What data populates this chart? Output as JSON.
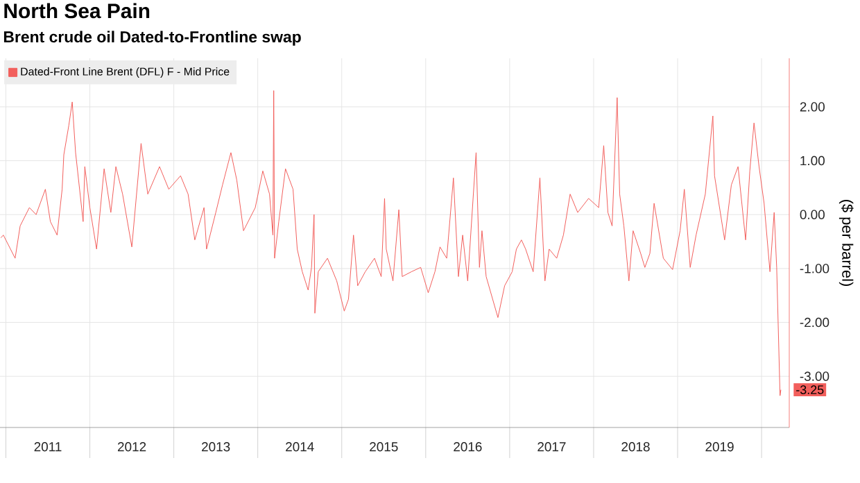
{
  "chart_data": {
    "type": "line",
    "title": "North Sea Pain",
    "subtitle": "Brent crude oil Dated-to-Frontline swap",
    "ylabel": "($ per barrel)",
    "x": [
      2010.94,
      2010.97,
      2011.11,
      2011.17,
      2011.28,
      2011.36,
      2011.47,
      2011.53,
      2011.61,
      2011.67,
      2011.69,
      2011.75,
      2011.79,
      2011.83,
      2011.92,
      2011.94,
      2012.0,
      2012.08,
      2012.17,
      2012.25,
      2012.31,
      2012.39,
      2012.5,
      2012.61,
      2012.69,
      2012.83,
      2012.94,
      2013.08,
      2013.17,
      2013.25,
      2013.36,
      2013.39,
      2013.5,
      2013.58,
      2013.68,
      2013.75,
      2013.83,
      2013.97,
      2014.06,
      2014.14,
      2014.18,
      2014.19,
      2014.2,
      2014.25,
      2014.33,
      2014.42,
      2014.47,
      2014.53,
      2014.6,
      2014.64,
      2014.67,
      2014.68,
      2014.72,
      2014.83,
      2014.94,
      2015.03,
      2015.08,
      2015.14,
      2015.19,
      2015.28,
      2015.39,
      2015.47,
      2015.51,
      2015.53,
      2015.61,
      2015.68,
      2015.72,
      2015.83,
      2015.94,
      2016.03,
      2016.11,
      2016.17,
      2016.25,
      2016.33,
      2016.39,
      2016.44,
      2016.5,
      2016.6,
      2016.64,
      2016.67,
      2016.72,
      2016.86,
      2016.94,
      2017.03,
      2017.08,
      2017.14,
      2017.19,
      2017.28,
      2017.36,
      2017.42,
      2017.47,
      2017.56,
      2017.64,
      2017.72,
      2017.81,
      2017.94,
      2018.06,
      2018.12,
      2018.17,
      2018.22,
      2018.28,
      2018.31,
      2018.36,
      2018.42,
      2018.47,
      2018.56,
      2018.61,
      2018.67,
      2018.72,
      2018.83,
      2018.94,
      2019.03,
      2019.08,
      2019.15,
      2019.22,
      2019.33,
      2019.42,
      2019.44,
      2019.56,
      2019.64,
      2019.72,
      2019.81,
      2019.86,
      2019.91,
      2019.97,
      2020.03,
      2020.1,
      2020.15,
      2020.18,
      2020.22,
      2020.23
    ],
    "series": [
      {
        "name": "Dated-Front Line Brent (DFL) F - Mid Price",
        "color": "#f25f5c",
        "values": [
          -0.43,
          -0.38,
          -0.81,
          -0.21,
          0.13,
          0.0,
          0.47,
          -0.13,
          -0.38,
          0.47,
          1.11,
          1.66,
          2.09,
          1.15,
          -0.13,
          0.89,
          0.13,
          -0.64,
          0.85,
          0.04,
          0.89,
          0.38,
          -0.6,
          1.32,
          0.38,
          0.89,
          0.47,
          0.72,
          0.38,
          -0.47,
          0.13,
          -0.64,
          0.04,
          0.55,
          1.15,
          0.64,
          -0.3,
          0.13,
          0.81,
          0.38,
          -0.38,
          2.3,
          -0.81,
          -0.13,
          0.85,
          0.47,
          -0.64,
          -1.06,
          -1.4,
          -0.98,
          0.0,
          -1.83,
          -1.06,
          -0.81,
          -1.23,
          -1.79,
          -1.57,
          -0.38,
          -1.32,
          -1.06,
          -0.81,
          -1.15,
          0.3,
          -0.64,
          -1.23,
          0.09,
          -1.15,
          -1.06,
          -0.98,
          -1.45,
          -1.06,
          -0.6,
          -0.81,
          0.68,
          -1.15,
          -0.38,
          -1.23,
          1.15,
          -0.98,
          -0.3,
          -1.15,
          -1.91,
          -1.32,
          -1.06,
          -0.64,
          -0.47,
          -0.64,
          -1.06,
          0.68,
          -1.23,
          -0.64,
          -0.81,
          -0.38,
          0.38,
          0.04,
          0.3,
          0.13,
          1.28,
          0.04,
          -0.21,
          2.17,
          0.38,
          -0.21,
          -1.23,
          -0.3,
          -0.72,
          -0.98,
          -0.72,
          0.21,
          -0.81,
          -1.02,
          -0.3,
          0.47,
          -0.98,
          -0.38,
          0.38,
          1.83,
          0.72,
          -0.47,
          0.55,
          0.89,
          -0.47,
          0.81,
          1.7,
          0.89,
          0.21,
          -1.06,
          0.04,
          -0.98,
          -3.36,
          -3.25
        ]
      }
    ],
    "xlim": [
      2010.93,
      2020.33
    ],
    "ylim": [
      -3.95,
      2.9
    ],
    "xticks": [
      {
        "value": 2011,
        "label": null
      },
      {
        "value": 2012,
        "label": null
      },
      {
        "value": 2013,
        "label": null
      },
      {
        "value": 2014,
        "label": null
      },
      {
        "value": 2015,
        "label": null
      },
      {
        "value": 2016,
        "label": null
      },
      {
        "value": 2017,
        "label": null
      },
      {
        "value": 2018,
        "label": null
      },
      {
        "value": 2019,
        "label": null
      },
      {
        "value": 2020,
        "label": null
      },
      {
        "value": 2011.5,
        "label": "2011"
      },
      {
        "value": 2012.5,
        "label": "2012"
      },
      {
        "value": 2013.5,
        "label": "2013"
      },
      {
        "value": 2014.5,
        "label": "2014"
      },
      {
        "value": 2015.5,
        "label": "2015"
      },
      {
        "value": 2016.5,
        "label": "2016"
      },
      {
        "value": 2017.5,
        "label": "2017"
      },
      {
        "value": 2018.5,
        "label": "2018"
      },
      {
        "value": 2019.5,
        "label": "2019"
      }
    ],
    "yticks": [
      {
        "value": -3,
        "label": "-3.00"
      },
      {
        "value": -2,
        "label": "-2.00"
      },
      {
        "value": -1,
        "label": "-1.00"
      },
      {
        "value": 0,
        "label": "0.00"
      },
      {
        "value": 1,
        "label": "1.00"
      },
      {
        "value": 2,
        "label": "2.00"
      }
    ],
    "annotations": [
      {
        "text": "-3.25",
        "x": 2020.23,
        "y": -3.25
      }
    ],
    "grid": true,
    "legend": "top left"
  }
}
